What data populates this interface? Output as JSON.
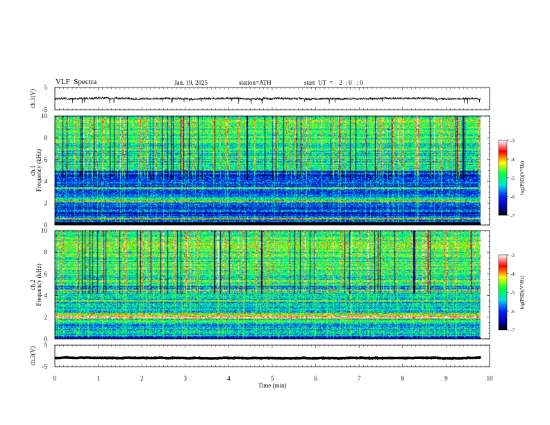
{
  "header": {
    "title": "VLF  Spectra",
    "date": "Jan. 19, 2025",
    "station": "station=ATH",
    "start": "start  UT  =    2  : 0   : 0"
  },
  "chart_data": [
    {
      "type": "line",
      "panel": "ch1-waveform",
      "ylabel": "ch.1(V)",
      "yticks": [
        "5",
        "-5"
      ],
      "ylim": [
        -5,
        5
      ],
      "xlim": [
        0,
        10
      ],
      "description": "Dense noisy waveform near 0 V with amplitude roughly ±0.5 V and occasional spikes to about -2 V",
      "baseline_value": 0,
      "amplitude": 0.5,
      "data_end_min": 9.8
    },
    {
      "type": "heatmap",
      "panel": "ch1-spectrogram",
      "ylabel": "ch.1\nFrequency (kHz)",
      "ylabel_line1": "ch.1",
      "ylabel_line2": "Frequency (kHz)",
      "yticks": [
        "0",
        "2",
        "4",
        "6",
        "8",
        "10"
      ],
      "ylim": [
        0,
        10
      ],
      "xlim": [
        0,
        10
      ],
      "data_end_min": 9.8,
      "colorbar": {
        "label": "log(PSD)(V²/Hz)",
        "ticks": [
          "-3",
          "-4",
          "-5",
          "-6",
          "-7"
        ],
        "range": [
          -7,
          -3
        ]
      }
    },
    {
      "type": "heatmap",
      "panel": "ch2-spectrogram",
      "ylabel": "ch.2\nFrequency (kHz)",
      "ylabel_line1": "ch.2",
      "ylabel_line2": "Frequency (kHz)",
      "yticks": [
        "0",
        "2",
        "4",
        "6",
        "8",
        "10"
      ],
      "ylim": [
        0,
        10
      ],
      "xlim": [
        0,
        10
      ],
      "data_end_min": 9.8,
      "colorbar": {
        "label": "log(PSD)(V²/Hz)",
        "ticks": [
          "-3",
          "-4",
          "-5",
          "-6",
          "-7"
        ],
        "range": [
          -7,
          -3
        ]
      }
    },
    {
      "type": "line",
      "panel": "ch3-waveform",
      "ylabel": "ch.3(V)",
      "yticks": [
        "5",
        "-5"
      ],
      "ylim": [
        -5,
        5
      ],
      "xlim": [
        0,
        10
      ],
      "description": "Thick flat trace near -1 V",
      "baseline_value": -1,
      "data_end_min": 9.8
    }
  ],
  "xaxis": {
    "label": "Time  (min)",
    "ticks": [
      "0",
      "1",
      "2",
      "3",
      "4",
      "5",
      "6",
      "7",
      "8",
      "9",
      "10"
    ],
    "range": [
      0,
      10
    ]
  }
}
